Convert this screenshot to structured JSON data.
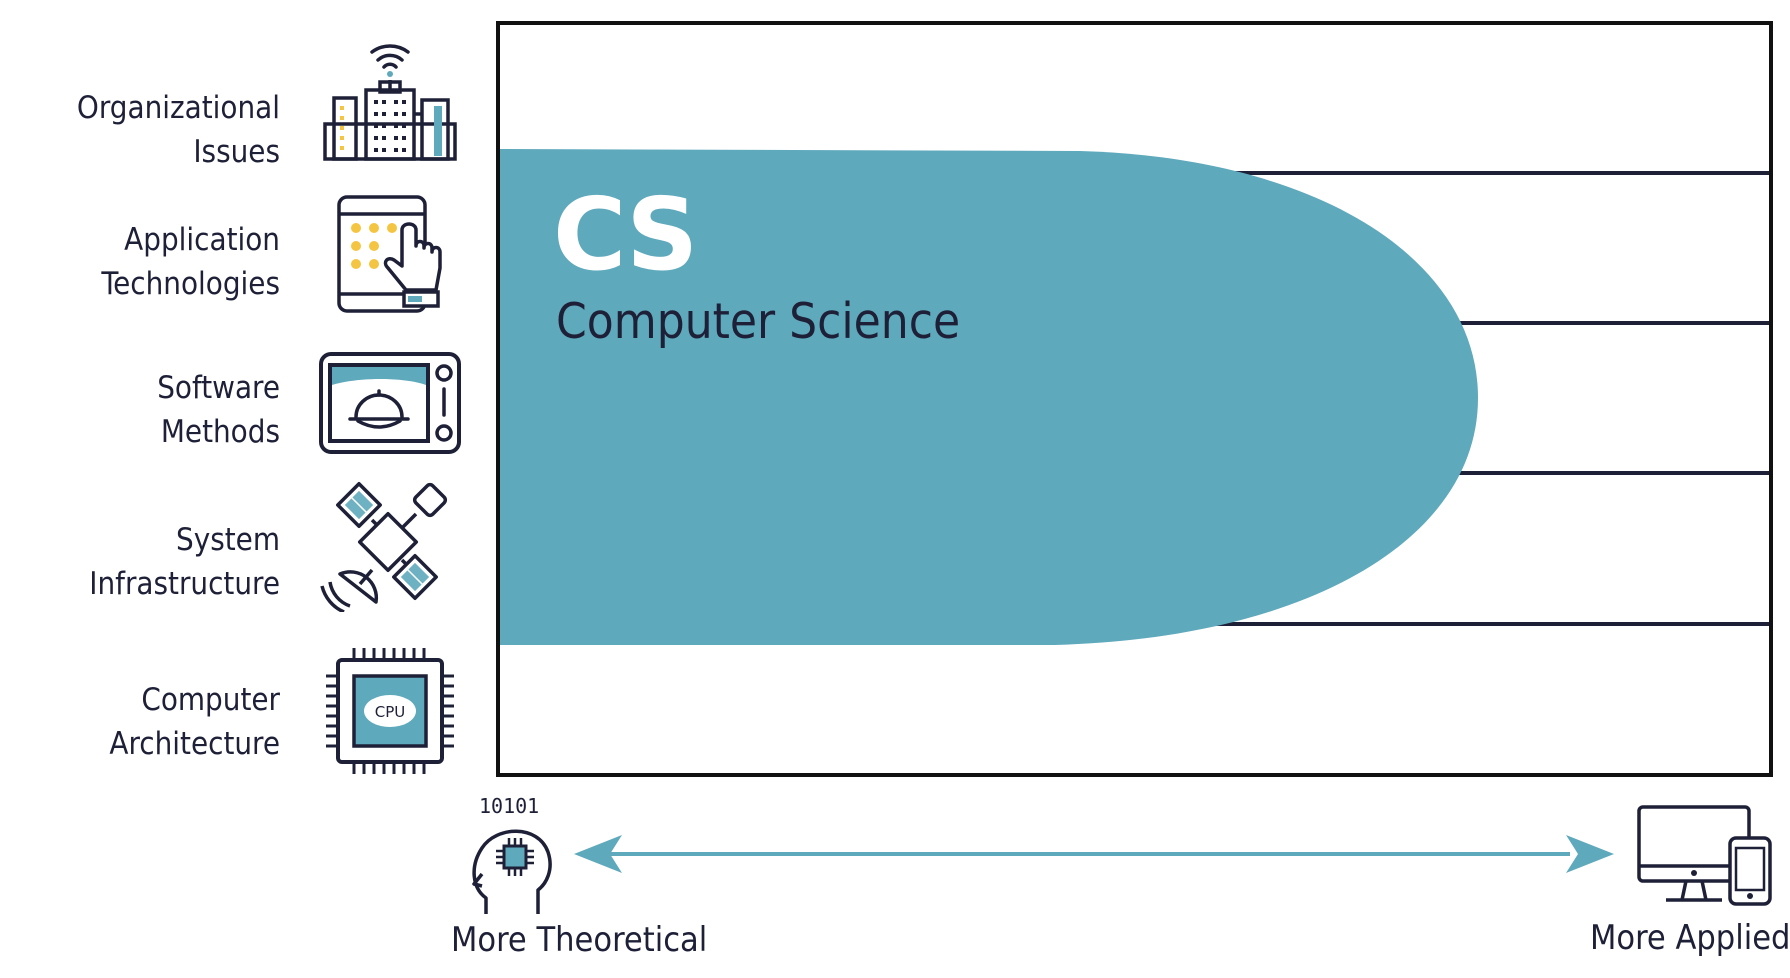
{
  "layers": [
    {
      "line1": "Organizational",
      "line2": "Issues",
      "icon": "city-buildings-icon"
    },
    {
      "line1": "Application",
      "line2": "Technologies",
      "icon": "tablet-touch-icon"
    },
    {
      "line1": "Software",
      "line2": "Methods",
      "icon": "microwave-oven-icon"
    },
    {
      "line1": "System",
      "line2": "Infrastructure",
      "icon": "satellite-icon"
    },
    {
      "line1": "Computer",
      "line2": "Architecture",
      "icon": "cpu-chip-icon"
    }
  ],
  "discipline": {
    "abbr": "CS",
    "name": "Computer Science"
  },
  "axis": {
    "left_label": "More Theoretical",
    "right_label": "More Applied",
    "left_icon": "head-chip-icon",
    "right_icon": "desktop-phone-icon",
    "binary_text": "10101"
  },
  "cpu_label": "CPU",
  "colors": {
    "teal": "#5fa9bc",
    "navy": "#1e2038",
    "yellow": "#f4c542"
  }
}
